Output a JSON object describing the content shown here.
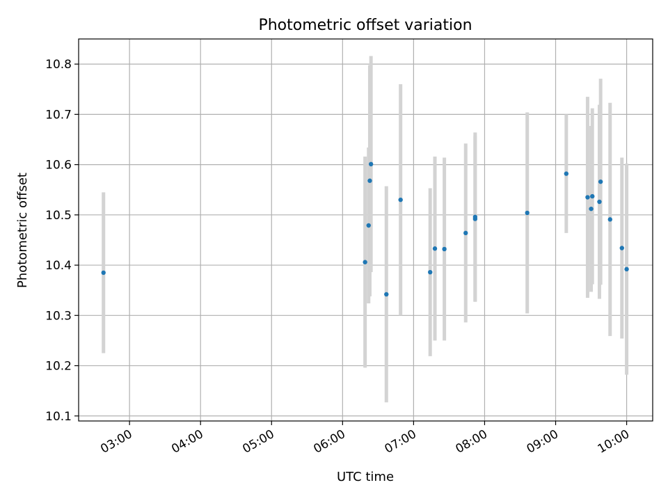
{
  "chart_data": {
    "type": "scatter",
    "title": "Photometric offset variation",
    "xlabel": "UTC time",
    "ylabel": "Photometric offset",
    "x_tick_labels": [
      "03:00",
      "04:00",
      "05:00",
      "06:00",
      "07:00",
      "08:00",
      "09:00",
      "10:00"
    ],
    "y_tick_labels": [
      "10.1",
      "10.2",
      "10.3",
      "10.4",
      "10.5",
      "10.6",
      "10.7",
      "10.8"
    ],
    "x_ticks": [
      "03:00",
      "04:00",
      "05:00",
      "06:00",
      "07:00",
      "08:00",
      "09:00",
      "10:00"
    ],
    "y_ticks": [
      10.1,
      10.2,
      10.3,
      10.4,
      10.5,
      10.6,
      10.7,
      10.8
    ],
    "xlim": [
      "02:17",
      "10:22"
    ],
    "ylim": [
      10.09,
      10.85
    ],
    "grid": true,
    "legend": "none",
    "colors": {
      "marker": "#1f77b4",
      "errorbar": "#d3d3d3",
      "grid": "#b0b0b0"
    },
    "series": [
      {
        "points": [
          {
            "x": "02:38",
            "y": 10.385,
            "err": 0.16
          },
          {
            "x": "06:19",
            "y": 10.406,
            "err": 0.21
          },
          {
            "x": "06:22",
            "y": 10.479,
            "err": 0.155
          },
          {
            "x": "06:23",
            "y": 10.568,
            "err": 0.23
          },
          {
            "x": "06:24",
            "y": 10.601,
            "err": 0.215
          },
          {
            "x": "06:37",
            "y": 10.342,
            "err": 0.215
          },
          {
            "x": "06:49",
            "y": 10.53,
            "err": 0.23
          },
          {
            "x": "07:14",
            "y": 10.386,
            "err": 0.167
          },
          {
            "x": "07:18",
            "y": 10.433,
            "err": 0.183
          },
          {
            "x": "07:26",
            "y": 10.432,
            "err": 0.182
          },
          {
            "x": "07:44",
            "y": 10.464,
            "err": 0.178
          },
          {
            "x": "07:52",
            "y": 10.492,
            "err": 0.165
          },
          {
            "x": "07:52",
            "y": 10.496,
            "err": 0.168
          },
          {
            "x": "08:36",
            "y": 10.504,
            "err": 0.2
          },
          {
            "x": "09:09",
            "y": 10.582,
            "err": 0.118
          },
          {
            "x": "09:27",
            "y": 10.535,
            "err": 0.2
          },
          {
            "x": "09:30",
            "y": 10.512,
            "err": 0.165
          },
          {
            "x": "09:31",
            "y": 10.537,
            "err": 0.175
          },
          {
            "x": "09:37",
            "y": 10.526,
            "err": 0.193
          },
          {
            "x": "09:38",
            "y": 10.566,
            "err": 0.205
          },
          {
            "x": "09:46",
            "y": 10.491,
            "err": 0.232
          },
          {
            "x": "09:56",
            "y": 10.434,
            "err": 0.18
          },
          {
            "x": "10:00",
            "y": 10.392,
            "err": 0.21
          }
        ]
      }
    ]
  }
}
